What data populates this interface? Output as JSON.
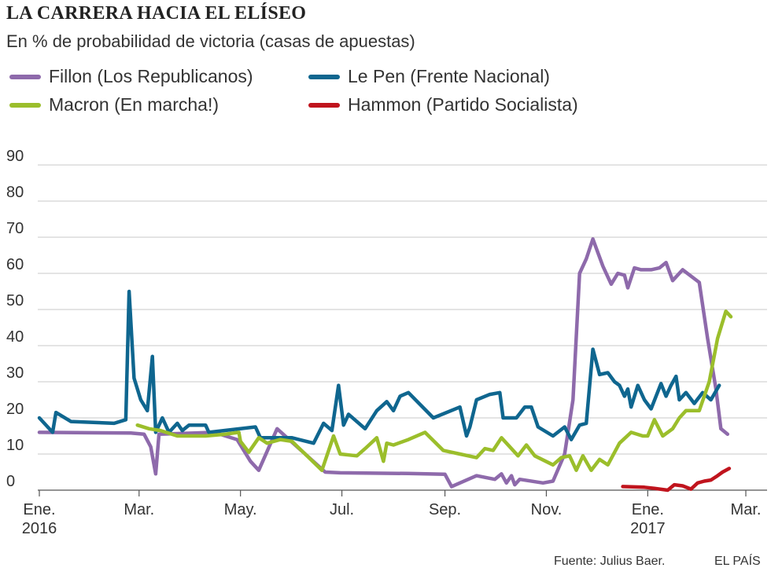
{
  "title": "LA CARRERA HACIA EL ELÍSEO",
  "subtitle": "En % de probabilidad de victoria (casas de apuestas)",
  "source": "Fuente: Julius Baer.",
  "brand": "EL PAÍS",
  "chart_data": {
    "type": "line",
    "title": "LA CARRERA HACIA EL ELÍSEO",
    "subtitle": "En % de probabilidad de victoria (casas de apuestas)",
    "ylim": [
      0,
      90
    ],
    "y_ticks": [
      0,
      10,
      20,
      30,
      40,
      50,
      60,
      70,
      80,
      90
    ],
    "x_range": [
      "2016-01-01",
      "2017-03-15"
    ],
    "x_ticks": [
      {
        "date": "2016-01-01",
        "label": "Ene.",
        "sublabel": "2016"
      },
      {
        "date": "2016-03-01",
        "label": "Mar.",
        "sublabel": ""
      },
      {
        "date": "2016-05-01",
        "label": "May.",
        "sublabel": ""
      },
      {
        "date": "2016-07-01",
        "label": "Jul.",
        "sublabel": ""
      },
      {
        "date": "2016-09-01",
        "label": "Sep.",
        "sublabel": ""
      },
      {
        "date": "2016-11-01",
        "label": "Nov.",
        "sublabel": ""
      },
      {
        "date": "2017-01-01",
        "label": "Ene.",
        "sublabel": "2017"
      },
      {
        "date": "2017-03-01",
        "label": "Mar.",
        "sublabel": ""
      }
    ],
    "grid": true,
    "legend_position": "top",
    "series": [
      {
        "name": "Fillon (Los Republicanos)",
        "color": "#8e6aab",
        "points": [
          [
            "2016-01-01",
            16
          ],
          [
            "2016-02-25",
            15.8
          ],
          [
            "2016-03-04",
            15.5
          ],
          [
            "2016-03-08",
            12
          ],
          [
            "2016-03-11",
            4.5
          ],
          [
            "2016-03-13",
            15.5
          ],
          [
            "2016-04-15",
            16
          ],
          [
            "2016-04-29",
            14
          ],
          [
            "2016-05-07",
            8
          ],
          [
            "2016-05-12",
            5.5
          ],
          [
            "2016-05-23",
            17
          ],
          [
            "2016-06-21",
            5
          ],
          [
            "2016-06-30",
            4.8
          ],
          [
            "2016-08-10",
            4.6
          ],
          [
            "2016-09-01",
            4.4
          ],
          [
            "2016-09-05",
            1
          ],
          [
            "2016-09-20",
            4
          ],
          [
            "2016-10-01",
            3
          ],
          [
            "2016-10-05",
            4.5
          ],
          [
            "2016-10-08",
            2
          ],
          [
            "2016-10-11",
            4
          ],
          [
            "2016-10-13",
            1.5
          ],
          [
            "2016-10-16",
            3
          ],
          [
            "2016-10-30",
            2
          ],
          [
            "2016-11-05",
            2.5
          ],
          [
            "2016-11-12",
            10
          ],
          [
            "2016-11-17",
            25
          ],
          [
            "2016-11-21",
            60
          ],
          [
            "2016-11-25",
            64
          ],
          [
            "2016-11-29",
            69.5
          ],
          [
            "2016-12-05",
            62
          ],
          [
            "2016-12-10",
            57
          ],
          [
            "2016-12-14",
            60
          ],
          [
            "2016-12-18",
            59.5
          ],
          [
            "2016-12-20",
            56
          ],
          [
            "2016-12-24",
            61.5
          ],
          [
            "2016-12-28",
            61
          ],
          [
            "2017-01-03",
            61
          ],
          [
            "2017-01-08",
            61.5
          ],
          [
            "2017-01-12",
            63
          ],
          [
            "2017-01-16",
            58
          ],
          [
            "2017-01-22",
            61
          ],
          [
            "2017-02-01",
            57.5
          ],
          [
            "2017-02-06",
            42
          ],
          [
            "2017-02-11",
            28
          ],
          [
            "2017-02-14",
            17
          ],
          [
            "2017-02-18",
            15.5
          ]
        ]
      },
      {
        "name": "Le Pen (Frente Nacional)",
        "color": "#0f668f",
        "points": [
          [
            "2016-01-01",
            20
          ],
          [
            "2016-01-09",
            16
          ],
          [
            "2016-01-11",
            21.5
          ],
          [
            "2016-01-20",
            19
          ],
          [
            "2016-02-15",
            18.5
          ],
          [
            "2016-02-22",
            19.5
          ],
          [
            "2016-02-24",
            55
          ],
          [
            "2016-02-27",
            31
          ],
          [
            "2016-03-02",
            25
          ],
          [
            "2016-03-06",
            22
          ],
          [
            "2016-03-09",
            37
          ],
          [
            "2016-03-11",
            16
          ],
          [
            "2016-03-15",
            20
          ],
          [
            "2016-03-19",
            16
          ],
          [
            "2016-03-24",
            18.5
          ],
          [
            "2016-03-27",
            16.5
          ],
          [
            "2016-03-31",
            18
          ],
          [
            "2016-04-10",
            18
          ],
          [
            "2016-04-12",
            16
          ],
          [
            "2016-05-10",
            17.5
          ],
          [
            "2016-05-13",
            14.5
          ],
          [
            "2016-06-01",
            14.5
          ],
          [
            "2016-06-14",
            13
          ],
          [
            "2016-06-20",
            18.5
          ],
          [
            "2016-06-25",
            16.5
          ],
          [
            "2016-06-29",
            29
          ],
          [
            "2016-07-02",
            18
          ],
          [
            "2016-07-05",
            21
          ],
          [
            "2016-07-15",
            17
          ],
          [
            "2016-07-22",
            22
          ],
          [
            "2016-07-28",
            24.5
          ],
          [
            "2016-08-01",
            22
          ],
          [
            "2016-08-05",
            26
          ],
          [
            "2016-08-10",
            27
          ],
          [
            "2016-08-25",
            20
          ],
          [
            "2016-09-10",
            23
          ],
          [
            "2016-09-14",
            15
          ],
          [
            "2016-09-16",
            17.5
          ],
          [
            "2016-09-20",
            25
          ],
          [
            "2016-09-28",
            26.5
          ],
          [
            "2016-10-04",
            27
          ],
          [
            "2016-10-06",
            20
          ],
          [
            "2016-10-14",
            20
          ],
          [
            "2016-10-19",
            23
          ],
          [
            "2016-10-23",
            23
          ],
          [
            "2016-10-27",
            17.5
          ],
          [
            "2016-11-05",
            15
          ],
          [
            "2016-11-12",
            17.5
          ],
          [
            "2016-11-16",
            14
          ],
          [
            "2016-11-21",
            18
          ],
          [
            "2016-11-25",
            18.5
          ],
          [
            "2016-11-29",
            39
          ],
          [
            "2016-12-03",
            32
          ],
          [
            "2016-12-08",
            32.5
          ],
          [
            "2016-12-12",
            30
          ],
          [
            "2016-12-15",
            29
          ],
          [
            "2016-12-18",
            26
          ],
          [
            "2016-12-20",
            28
          ],
          [
            "2016-12-22",
            23
          ],
          [
            "2016-12-26",
            29
          ],
          [
            "2016-12-30",
            25
          ],
          [
            "2017-01-03",
            22.5
          ],
          [
            "2017-01-09",
            29.5
          ],
          [
            "2017-01-12",
            26
          ],
          [
            "2017-01-15",
            29
          ],
          [
            "2017-01-18",
            31.5
          ],
          [
            "2017-01-20",
            25
          ],
          [
            "2017-01-24",
            27
          ],
          [
            "2017-01-29",
            24
          ],
          [
            "2017-02-03",
            27
          ],
          [
            "2017-02-08",
            25
          ],
          [
            "2017-02-13",
            29
          ]
        ]
      },
      {
        "name": "Macron (En marcha!)",
        "color": "#9bbe2b",
        "points": [
          [
            "2016-02-29",
            18
          ],
          [
            "2016-03-07",
            17
          ],
          [
            "2016-03-14",
            16.5
          ],
          [
            "2016-03-24",
            15
          ],
          [
            "2016-03-31",
            15
          ],
          [
            "2016-04-10",
            15
          ],
          [
            "2016-04-22",
            15.5
          ],
          [
            "2016-04-30",
            16
          ],
          [
            "2016-05-01",
            13.5
          ],
          [
            "2016-05-06",
            10.5
          ],
          [
            "2016-05-12",
            14.5
          ],
          [
            "2016-05-17",
            13
          ],
          [
            "2016-05-25",
            14
          ],
          [
            "2016-06-01",
            13.5
          ],
          [
            "2016-06-10",
            9.5
          ],
          [
            "2016-06-19",
            5.5
          ],
          [
            "2016-06-26",
            15
          ],
          [
            "2016-06-30",
            10
          ],
          [
            "2016-07-10",
            9.5
          ],
          [
            "2016-07-15",
            11.5
          ],
          [
            "2016-07-22",
            14.5
          ],
          [
            "2016-07-26",
            8
          ],
          [
            "2016-07-28",
            13
          ],
          [
            "2016-08-01",
            12.5
          ],
          [
            "2016-08-10",
            14
          ],
          [
            "2016-08-20",
            16
          ],
          [
            "2016-08-31",
            11
          ],
          [
            "2016-09-10",
            10
          ],
          [
            "2016-09-20",
            9
          ],
          [
            "2016-09-25",
            11.5
          ],
          [
            "2016-09-30",
            11
          ],
          [
            "2016-10-05",
            14.5
          ],
          [
            "2016-10-10",
            12
          ],
          [
            "2016-10-15",
            9.5
          ],
          [
            "2016-10-20",
            12.5
          ],
          [
            "2016-10-25",
            9.5
          ],
          [
            "2016-11-05",
            7
          ],
          [
            "2016-11-10",
            9
          ],
          [
            "2016-11-15",
            9.5
          ],
          [
            "2016-11-19",
            5.5
          ],
          [
            "2016-11-23",
            9.5
          ],
          [
            "2016-11-28",
            5.5
          ],
          [
            "2016-12-03",
            8.5
          ],
          [
            "2016-12-08",
            7
          ],
          [
            "2016-12-15",
            13
          ],
          [
            "2016-12-22",
            16
          ],
          [
            "2016-12-29",
            15
          ],
          [
            "2017-01-01",
            15
          ],
          [
            "2017-01-05",
            19.5
          ],
          [
            "2017-01-10",
            15
          ],
          [
            "2017-01-16",
            17
          ],
          [
            "2017-01-20",
            20
          ],
          [
            "2017-01-24",
            22
          ],
          [
            "2017-02-01",
            22
          ],
          [
            "2017-02-07",
            30
          ],
          [
            "2017-02-12",
            42
          ],
          [
            "2017-02-17",
            49.5
          ],
          [
            "2017-02-20",
            48
          ]
        ]
      },
      {
        "name": "Hammon (Partido Socialista)",
        "color": "#c0141d",
        "points": [
          [
            "2016-12-17",
            1
          ],
          [
            "2016-12-30",
            0.8
          ],
          [
            "2017-01-05",
            0.5
          ],
          [
            "2017-01-13",
            0
          ],
          [
            "2017-01-17",
            1.5
          ],
          [
            "2017-01-22",
            1.2
          ],
          [
            "2017-01-27",
            0.3
          ],
          [
            "2017-01-31",
            2
          ],
          [
            "2017-02-04",
            2.5
          ],
          [
            "2017-02-08",
            2.8
          ],
          [
            "2017-02-12",
            4
          ],
          [
            "2017-02-15",
            5
          ],
          [
            "2017-02-19",
            6
          ]
        ]
      }
    ]
  }
}
